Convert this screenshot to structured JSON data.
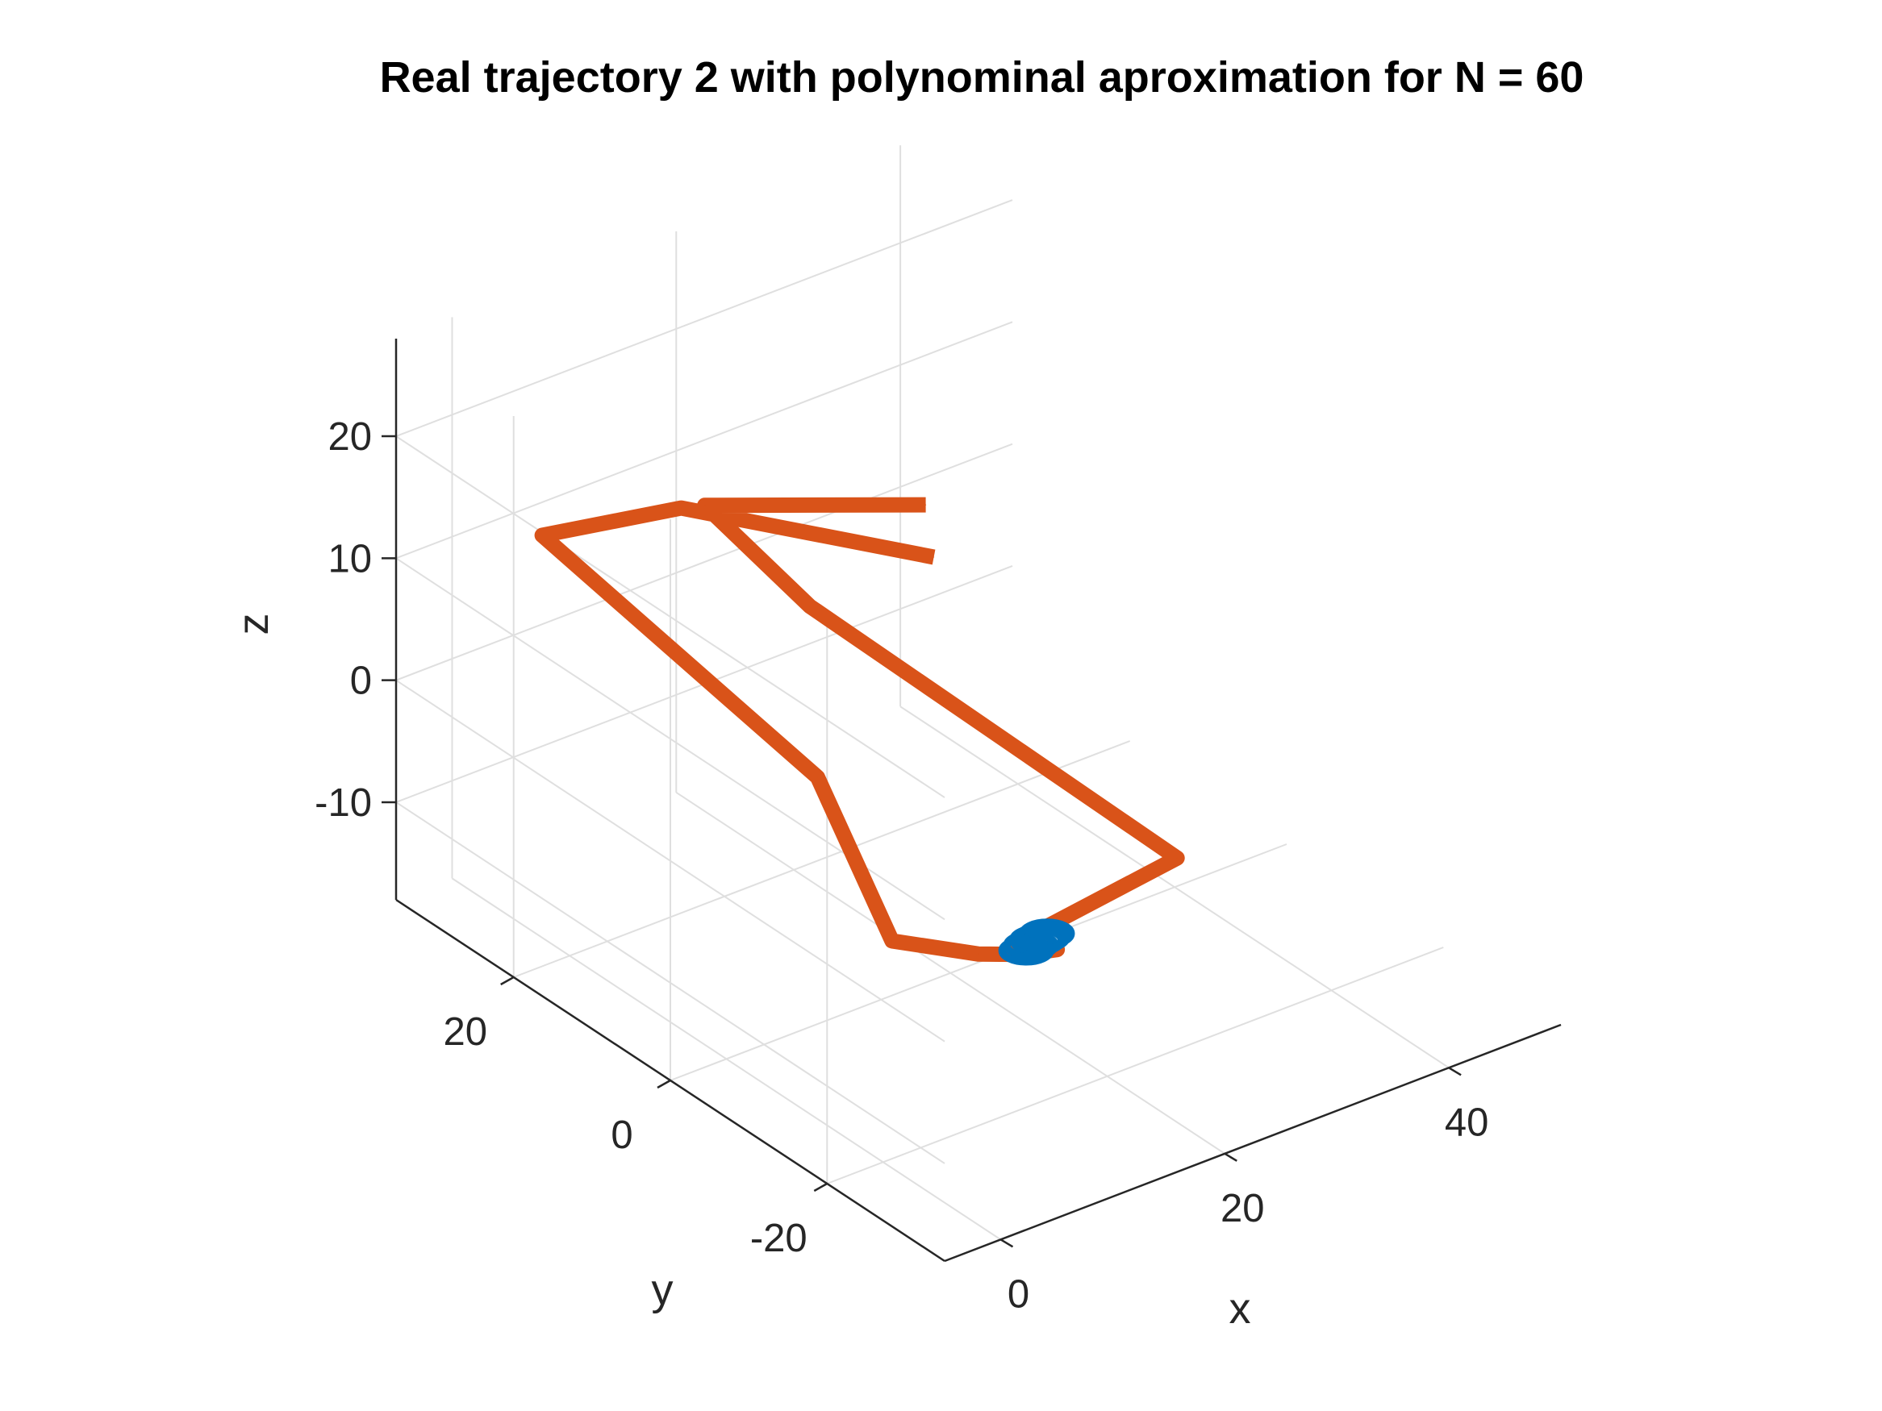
{
  "chart_data": {
    "type": "line",
    "projection": "3d",
    "title": "Real trajectory 2 with polynominal aproximation for N = 60",
    "xlabel": "x",
    "ylabel": "y",
    "zlabel": "z",
    "xlim": [
      -5,
      50
    ],
    "ylim": [
      -35,
      35
    ],
    "zlim": [
      -18,
      28
    ],
    "xticks": [
      0,
      20,
      40
    ],
    "xticklabels": [
      "0",
      "20",
      "40"
    ],
    "yticks": [
      20,
      0,
      -20
    ],
    "yticklabels": [
      "20",
      "0",
      "-20"
    ],
    "zticks": [
      20,
      10,
      0,
      -10
    ],
    "zticklabels": [
      "20",
      "10",
      "0",
      "-10"
    ],
    "grid": true,
    "box": false,
    "colors": {
      "real": "#D95319",
      "approx": "#0072BD",
      "axis": "#262626",
      "grid": "#DFDFDF"
    },
    "series": [
      {
        "style": "thick-line",
        "points": [
          [
            41.1,
            32.3,
            -5
          ],
          [
            -0.4,
            5.2,
            25.1
          ],
          [
            -4.2,
            17.5,
            19
          ],
          [
            6.6,
            -2.2,
            3.7
          ],
          [
            6.6,
            -11.7,
            -5.7
          ],
          [
            11.9,
            -15.1,
            -7.2
          ],
          [
            14.9,
            -16.5,
            -7.7
          ],
          [
            13.3,
            -23.2,
            -3.9
          ],
          [
            11.4,
            -20.6,
            -3.8
          ],
          [
            23.3,
            -24.2,
            0.5
          ],
          [
            -5,
            -17.8,
            28.4
          ],
          [
            -4.8,
            -4.1,
            30.8
          ],
          [
            42.2,
            34.9,
            -2.2
          ]
        ]
      },
      {
        "style": "markers",
        "points": [
          [
            14.8,
            -17.1,
            -7.1
          ],
          [
            14.6,
            -18.0,
            -6.2
          ],
          [
            14.4,
            -19.1,
            -5.3
          ],
          [
            14.2,
            -20.0,
            -4.6
          ],
          [
            14.0,
            -20.9,
            -3.8
          ],
          [
            14.8,
            -18.5,
            -5.6
          ],
          [
            14.5,
            -19.5,
            -4.9
          ]
        ]
      }
    ]
  }
}
